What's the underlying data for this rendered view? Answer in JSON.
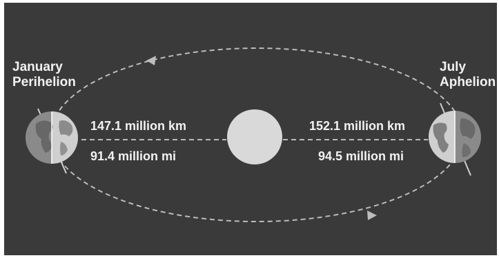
{
  "perihelion": {
    "month": "January",
    "name": "Perihelion",
    "distance_km": "147.1 million km",
    "distance_mi": "91.4 million mi"
  },
  "aphelion": {
    "month": "July",
    "name": "Aphelion",
    "distance_km": "152.1 million km",
    "distance_mi": "94.5 million mi"
  },
  "colors": {
    "background": "#3a3a3a",
    "text": "#f2f2f2",
    "orbit": "#bdbdbd",
    "sun": "#d9d9d9",
    "earth_day": "#cfcfcf",
    "earth_night": "#8a8a8a",
    "land": "#5e5e5e"
  }
}
